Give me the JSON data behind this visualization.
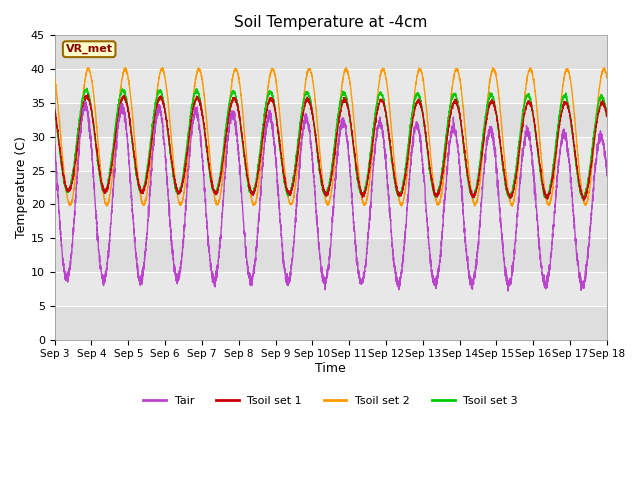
{
  "title": "Soil Temperature at -4cm",
  "xlabel": "Time",
  "ylabel": "Temperature (C)",
  "ylim": [
    0,
    45
  ],
  "yticks": [
    0,
    5,
    10,
    15,
    20,
    25,
    30,
    35,
    40,
    45
  ],
  "x_labels": [
    "Sep 3",
    "Sep 4",
    "Sep 5",
    "Sep 6",
    "Sep 7",
    "Sep 8",
    "Sep 9",
    "Sep 10",
    "Sep 11",
    "Sep 12",
    "Sep 13",
    "Sep 14",
    "Sep 15",
    "Sep 16",
    "Sep 17",
    "Sep 18"
  ],
  "colors": {
    "Tair": "#bb44cc",
    "Tsoil1": "#cc0000",
    "Tsoil2": "#ff9900",
    "Tsoil3": "#00cc00"
  },
  "background_plot": "#e8e8e8",
  "background_fig": "#ffffff",
  "grid_color": "#ffffff",
  "band_colors": [
    "#e0e0e0",
    "#d0d0d0"
  ],
  "annotation_text": "VR_met",
  "annotation_bg": "#ffffcc",
  "annotation_border": "#996600"
}
